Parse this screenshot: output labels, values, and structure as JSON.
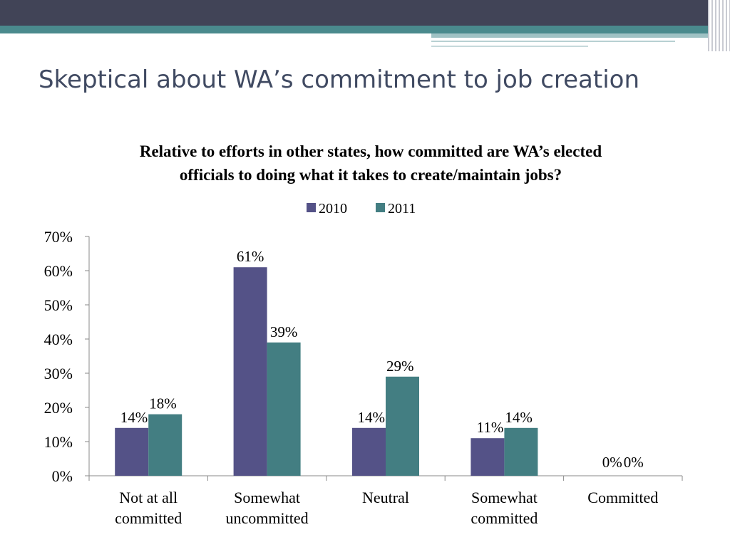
{
  "slide": {
    "title": "Skeptical about WA’s commitment to job creation"
  },
  "theme": {
    "header_dark": "#414457",
    "header_teal": "#4a8a8d",
    "header_light": "#9fc2c4",
    "title_color": "#404a62"
  },
  "chart_data": {
    "type": "bar",
    "title_lines": [
      "Relative to efforts in other states, how committed are WA’s elected",
      "officials to doing what it takes to create/maintain jobs?"
    ],
    "categories": [
      [
        "Not at all",
        "committed"
      ],
      [
        "Somewhat",
        "uncommitted"
      ],
      [
        "Neutral"
      ],
      [
        "Somewhat",
        "committed"
      ],
      [
        "Committed"
      ]
    ],
    "series": [
      {
        "name": "2010",
        "color": "#545287",
        "values": [
          14,
          61,
          14,
          11,
          0
        ],
        "labels": [
          "14%",
          "61%",
          "14%",
          "11%",
          "0%"
        ]
      },
      {
        "name": "2011",
        "color": "#437e82",
        "values": [
          18,
          39,
          29,
          14,
          0
        ],
        "labels": [
          "18%",
          "39%",
          "29%",
          "14%",
          "0%"
        ]
      }
    ],
    "y_ticks": [
      "0%",
      "10%",
      "20%",
      "30%",
      "40%",
      "50%",
      "60%",
      "70%"
    ],
    "ylim": [
      0,
      70
    ],
    "y_step": 10,
    "legend_position": "top-center",
    "grid": false
  }
}
